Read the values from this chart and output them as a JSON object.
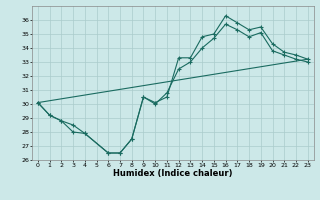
{
  "xlabel": "Humidex (Indice chaleur)",
  "background_color": "#cce8e8",
  "grid_color": "#aacccc",
  "line_color": "#1a6b60",
  "xlim": [
    -0.5,
    23.5
  ],
  "ylim": [
    26,
    37
  ],
  "yticks": [
    26,
    27,
    28,
    29,
    30,
    31,
    32,
    33,
    34,
    35,
    36
  ],
  "xticks": [
    0,
    1,
    2,
    3,
    4,
    5,
    6,
    7,
    8,
    9,
    10,
    11,
    12,
    13,
    14,
    15,
    16,
    17,
    18,
    19,
    20,
    21,
    22,
    23
  ],
  "line1_x": [
    0,
    1,
    2,
    3,
    4,
    6,
    7,
    8,
    9,
    10,
    11,
    12,
    13,
    14,
    15,
    16,
    17,
    18,
    19,
    20,
    21,
    22,
    23
  ],
  "line1_y": [
    30.1,
    29.2,
    28.8,
    28.5,
    27.9,
    26.5,
    26.5,
    27.5,
    30.5,
    30.1,
    30.5,
    33.3,
    33.3,
    34.8,
    35.0,
    36.3,
    35.8,
    35.3,
    35.5,
    34.3,
    33.7,
    33.5,
    33.2
  ],
  "line2_x": [
    0,
    1,
    2,
    3,
    4,
    6,
    7,
    8,
    9,
    10,
    11,
    12,
    13,
    14,
    15,
    16,
    17,
    18,
    19,
    20,
    21,
    22,
    23
  ],
  "line2_y": [
    30.1,
    29.2,
    28.8,
    28.0,
    27.9,
    26.5,
    26.5,
    27.5,
    30.5,
    30.0,
    30.8,
    32.5,
    33.0,
    34.0,
    34.7,
    35.7,
    35.3,
    34.8,
    35.1,
    33.8,
    33.5,
    33.2,
    33.0
  ],
  "line3_x": [
    0,
    23
  ],
  "line3_y": [
    30.1,
    33.2
  ]
}
